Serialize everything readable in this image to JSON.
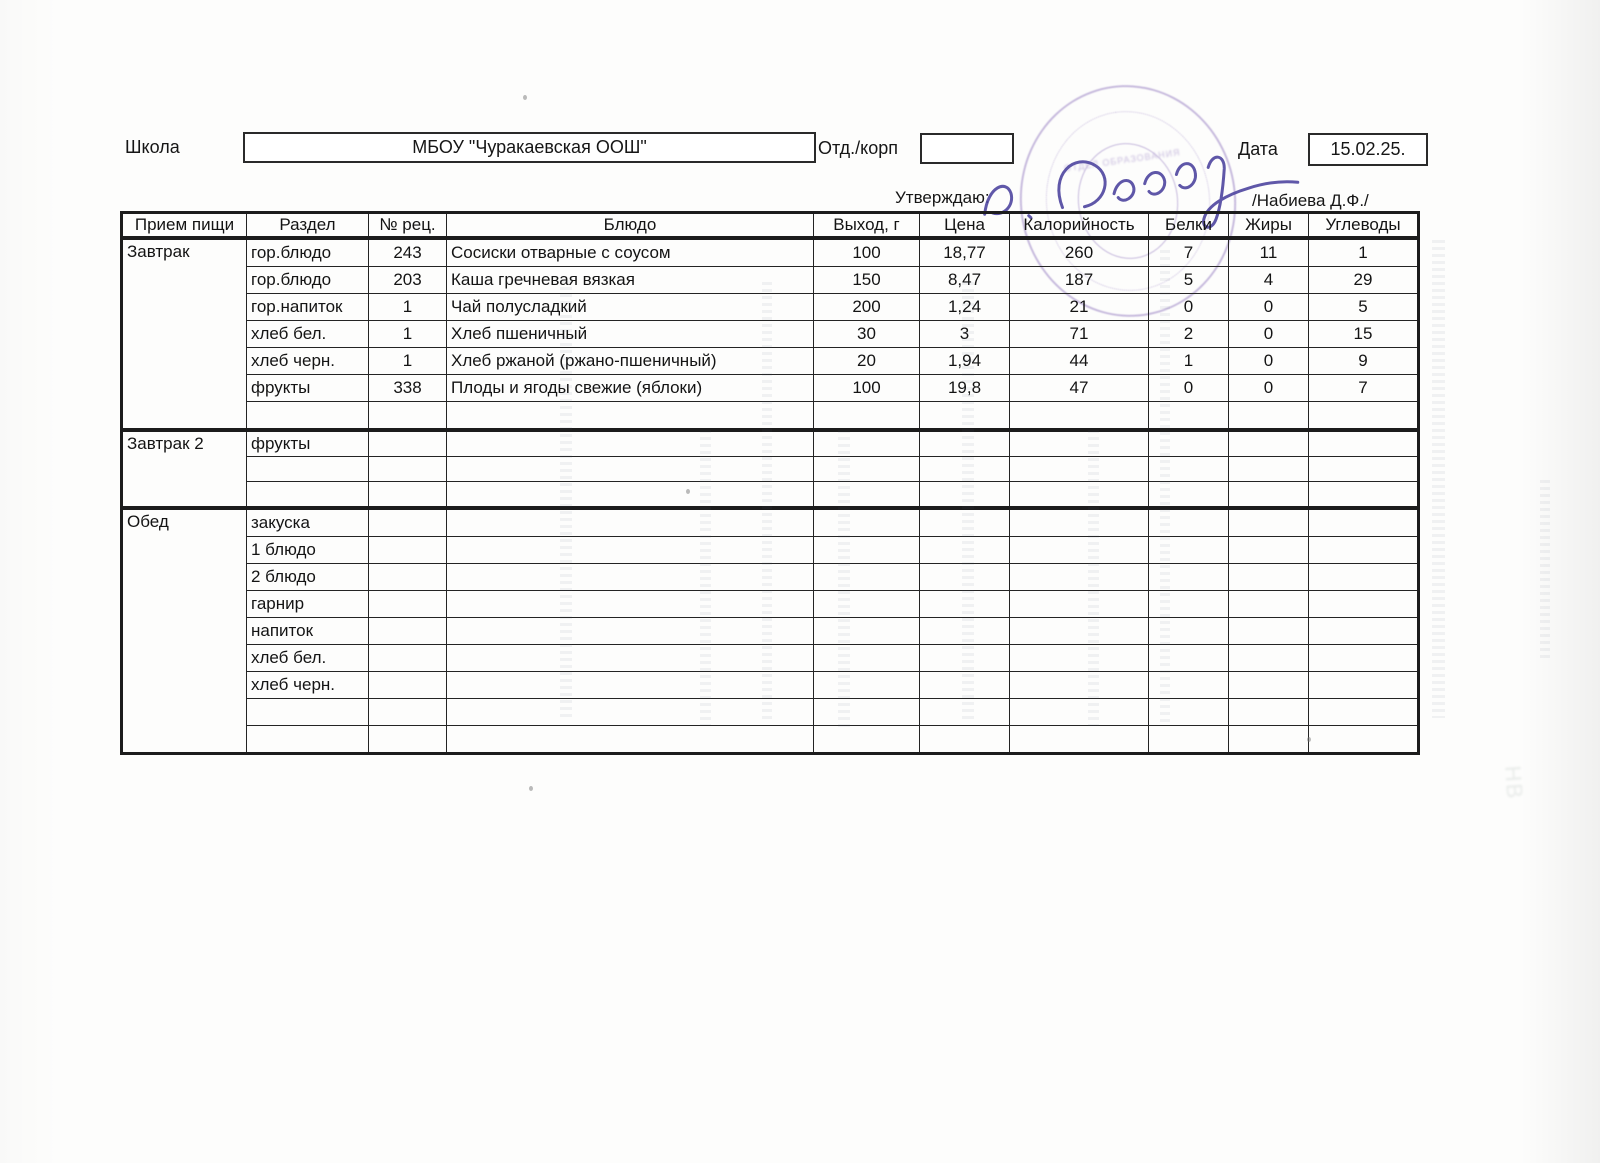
{
  "header": {
    "school_label": "Школа",
    "school_name": "МБОУ  \"Чуракаевская  ООШ\"",
    "dept_label": "Отд./корп",
    "dept_value": "",
    "date_label": "Дата",
    "date_value": "15.02.25.",
    "approve_label": "Утверждаю:",
    "approver_name": "/Набиева Д.Ф./"
  },
  "table": {
    "columns": [
      "Прием пищи",
      "Раздел",
      "№ рец.",
      "Блюдо",
      "Выход, г",
      "Цена",
      "Калорийность",
      "Белки",
      "Жиры",
      "Углеводы"
    ],
    "sections": [
      {
        "meal": "Завтрак",
        "rows": [
          [
            "гор.блюдо",
            "243",
            "Сосиски отварные с соусом",
            "100",
            "18,77",
            "260",
            "7",
            "11",
            "1"
          ],
          [
            "гор.блюдо",
            "203",
            "Каша гречневая вязкая",
            "150",
            "8,47",
            "187",
            "5",
            "4",
            "29"
          ],
          [
            "гор.напиток",
            "1",
            "Чай полусладкий",
            "200",
            "1,24",
            "21",
            "0",
            "0",
            "5"
          ],
          [
            "хлеб бел.",
            "1",
            "Хлеб пшеничный",
            "30",
            "3",
            "71",
            "2",
            "0",
            "15"
          ],
          [
            "хлеб черн.",
            "1",
            "Хлеб ржаной (ржано-пшеничный)",
            "20",
            "1,94",
            "44",
            "1",
            "0",
            "9"
          ],
          [
            "фрукты",
            "338",
            "Плоды и ягоды свежие (яблоки)",
            "100",
            "19,8",
            "47",
            "0",
            "0",
            "7"
          ],
          [
            "",
            "",
            "",
            "",
            "",
            "",
            "",
            "",
            ""
          ]
        ]
      },
      {
        "meal": "Завтрак 2",
        "rows": [
          [
            "фрукты",
            "",
            "",
            "",
            "",
            "",
            "",
            "",
            ""
          ],
          [
            "",
            "",
            "",
            "",
            "",
            "",
            "",
            "",
            ""
          ],
          [
            "",
            "",
            "",
            "",
            "",
            "",
            "",
            "",
            ""
          ]
        ]
      },
      {
        "meal": "Обед",
        "rows": [
          [
            "закуска",
            "",
            "",
            "",
            "",
            "",
            "",
            "",
            ""
          ],
          [
            "1 блюдо",
            "",
            "",
            "",
            "",
            "",
            "",
            "",
            ""
          ],
          [
            "2 блюдо",
            "",
            "",
            "",
            "",
            "",
            "",
            "",
            ""
          ],
          [
            "гарнир",
            "",
            "",
            "",
            "",
            "",
            "",
            "",
            ""
          ],
          [
            "напиток",
            "",
            "",
            "",
            "",
            "",
            "",
            "",
            ""
          ],
          [
            "хлеб бел.",
            "",
            "",
            "",
            "",
            "",
            "",
            "",
            ""
          ],
          [
            "хлеб черн.",
            "",
            "",
            "",
            "",
            "",
            "",
            "",
            ""
          ],
          [
            "",
            "",
            "",
            "",
            "",
            "",
            "",
            "",
            ""
          ],
          [
            "",
            "",
            "",
            "",
            "",
            "",
            "",
            "",
            ""
          ]
        ]
      }
    ]
  },
  "colors": {
    "ink": "#141414",
    "stamp": "#7d5fb3",
    "signature": "#4f46a0"
  }
}
